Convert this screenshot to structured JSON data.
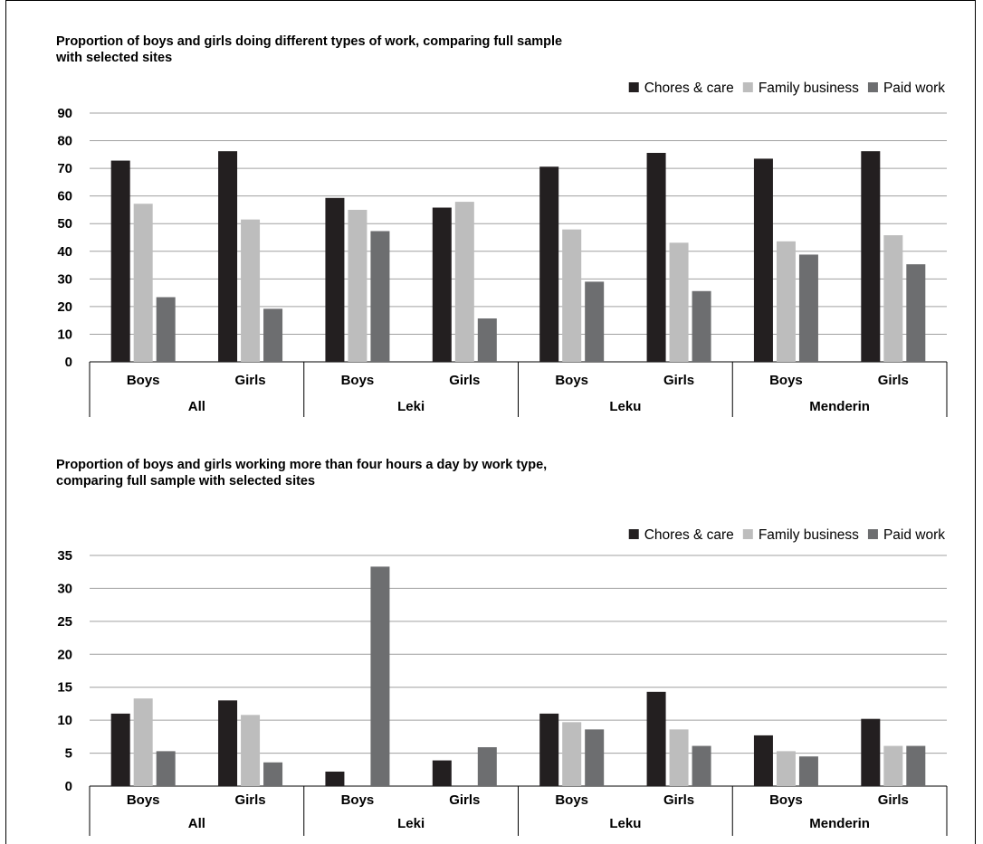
{
  "chart_data": [
    {
      "type": "bar",
      "title": "Proportion of boys and girls doing different types of work, comparing full sample with selected sites",
      "title_lines": [
        "Proportion of boys and girls doing different types of work, comparing full sample",
        "with selected sites"
      ],
      "groups": [
        "All",
        "Leki",
        "Leku",
        "Menderin"
      ],
      "categories": [
        "Boys",
        "Girls",
        "Boys",
        "Girls",
        "Boys",
        "Girls",
        "Boys",
        "Girls"
      ],
      "series": [
        {
          "name": "Chores & care",
          "color": "#231f20",
          "values": [
            72.8,
            76.2,
            59.3,
            55.8,
            70.6,
            75.6,
            73.5,
            76.2
          ]
        },
        {
          "name": "Family business",
          "color": "#bdbdbd",
          "values": [
            57.2,
            51.5,
            55.0,
            57.9,
            47.9,
            43.1,
            43.6,
            45.8
          ]
        },
        {
          "name": "Paid work",
          "color": "#6d6e70",
          "values": [
            23.4,
            19.2,
            47.3,
            15.7,
            29.0,
            25.6,
            38.8,
            35.3
          ]
        }
      ],
      "yticks": [
        0,
        10,
        20,
        30,
        40,
        50,
        60,
        70,
        80,
        90
      ],
      "ylim": [
        0,
        90
      ],
      "grid": true,
      "legend_position": "top-right"
    },
    {
      "type": "bar",
      "title": "Proportion of boys and girls working more than four hours a day by work type, comparing full sample with selected sites",
      "title_lines": [
        "Proportion of boys and girls working more than four hours a day by work type,",
        "comparing full sample with selected sites"
      ],
      "groups": [
        "All",
        "Leki",
        "Leku",
        "Menderin"
      ],
      "categories": [
        "Boys",
        "Girls",
        "Boys",
        "Girls",
        "Boys",
        "Girls",
        "Boys",
        "Girls"
      ],
      "series": [
        {
          "name": "Chores & care",
          "color": "#231f20",
          "values": [
            11.0,
            13.0,
            2.2,
            3.9,
            11.0,
            14.3,
            7.7,
            10.2
          ]
        },
        {
          "name": "Family business",
          "color": "#bdbdbd",
          "values": [
            13.3,
            10.8,
            0,
            0,
            9.7,
            8.6,
            5.3,
            6.1
          ]
        },
        {
          "name": "Paid work",
          "color": "#6d6e70",
          "values": [
            5.3,
            3.6,
            33.3,
            5.9,
            8.6,
            6.1,
            4.5,
            6.1
          ]
        }
      ],
      "yticks": [
        0,
        5,
        10,
        15,
        20,
        25,
        30,
        35
      ],
      "ylim": [
        0,
        35
      ],
      "grid": true,
      "legend_position": "top-right"
    }
  ]
}
